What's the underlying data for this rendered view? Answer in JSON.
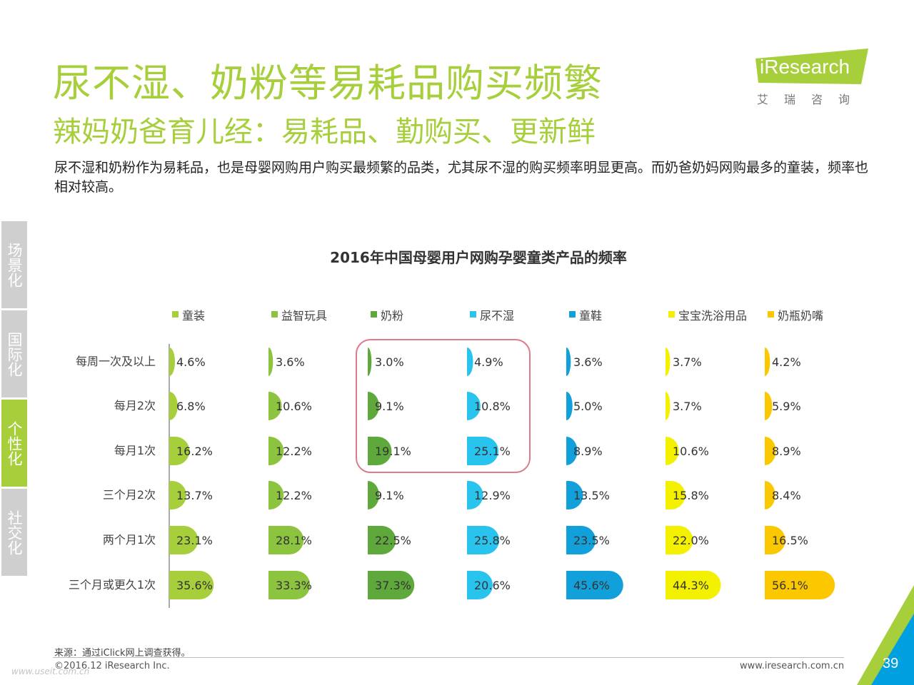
{
  "header": {
    "title": "尿不湿、奶粉等易耗品购买频繁",
    "subtitle": "辣妈奶爸育儿经：易耗品、勤购买、更新鲜",
    "description": "尿不湿和奶粉作为易耗品，也是母婴网购用户购买最频繁的品类，尤其尿不湿的购买频率明显更高。而奶爸奶妈网购最多的童装，频率也相对较高。"
  },
  "logo": {
    "text": "iResearch",
    "subtitle": "艾瑞咨询",
    "bg_color": "#a6cf3b"
  },
  "side_tabs": [
    {
      "label": "场景化",
      "active": false
    },
    {
      "label": "国际化",
      "active": false
    },
    {
      "label": "个性化",
      "active": true
    },
    {
      "label": "社交化",
      "active": false
    }
  ],
  "chart_data": {
    "type": "bar",
    "title": "2016年中国母婴用户网购孕婴童类产品的频率",
    "categories": [
      "每周一次及以上",
      "每月2次",
      "每月1次",
      "三个月2次",
      "两个月1次",
      "三个月或更久1次"
    ],
    "series": [
      {
        "name": "童装",
        "color": "#a6cf3b",
        "values": [
          4.6,
          6.8,
          16.2,
          13.7,
          23.1,
          35.6
        ],
        "labels": [
          "4.6%",
          "6.8%",
          "16.2%",
          "13.7%",
          "23.1%",
          "35.6%"
        ]
      },
      {
        "name": "益智玩具",
        "color": "#8cc43f",
        "values": [
          3.6,
          10.6,
          12.2,
          12.2,
          28.1,
          33.3
        ],
        "labels": [
          "3.6%",
          "10.6%",
          "12.2%",
          "12.2%",
          "28.1%",
          "33.3%"
        ]
      },
      {
        "name": "奶粉",
        "color": "#5fa83b",
        "values": [
          3.0,
          9.1,
          19.1,
          9.1,
          22.5,
          37.3
        ],
        "labels": [
          "3.0%",
          "9.1%",
          "19.1%",
          "9.1%",
          "22.5%",
          "37.3%"
        ]
      },
      {
        "name": "尿不湿",
        "color": "#29c4ee",
        "values": [
          4.9,
          10.8,
          25.1,
          12.9,
          25.8,
          20.6
        ],
        "labels": [
          "4.9%",
          "10.8%",
          "25.1%",
          "12.9%",
          "25.8%",
          "20.6%"
        ]
      },
      {
        "name": "童鞋",
        "color": "#12a0db",
        "values": [
          3.6,
          5.0,
          8.9,
          13.5,
          23.5,
          45.6
        ],
        "labels": [
          "3.6%",
          "5.0%",
          "8.9%",
          "13.5%",
          "23.5%",
          "45.6%"
        ]
      },
      {
        "name": "宝宝洗浴用品",
        "color": "#f3f000",
        "values": [
          3.7,
          3.7,
          10.6,
          15.8,
          22.0,
          44.3
        ],
        "labels": [
          "3.7%",
          "3.7%",
          "10.6%",
          "15.8%",
          "22.0%",
          "44.3%"
        ]
      },
      {
        "name": "奶瓶奶嘴",
        "color": "#fbc800",
        "values": [
          4.2,
          5.9,
          8.9,
          8.4,
          16.5,
          56.1
        ],
        "labels": [
          "4.2%",
          "5.9%",
          "8.9%",
          "8.4%",
          "16.5%",
          "56.1%"
        ]
      }
    ],
    "legend_position": "top",
    "grid": false,
    "highlight": {
      "series": [
        "奶粉",
        "尿不湿"
      ],
      "rows": [
        "每周一次及以上",
        "每月2次",
        "每月1次"
      ],
      "color": "#e07a8a"
    }
  },
  "footer": {
    "source": "来源：通过iClick网上调查获得。",
    "copyright": "©2016.12 iResearch Inc.",
    "website": "www.iresearch.com.cn",
    "page_number": "39",
    "watermark": "www.useit.com.cn"
  }
}
